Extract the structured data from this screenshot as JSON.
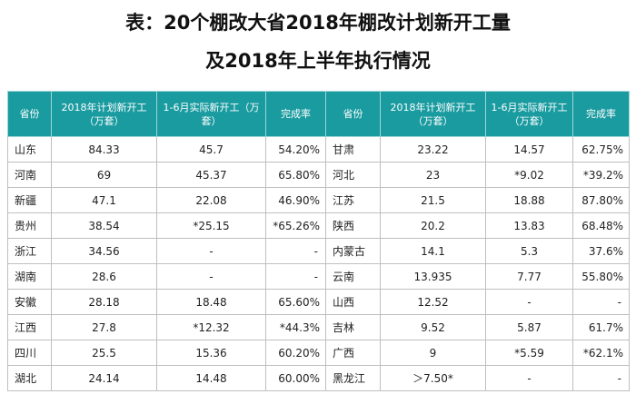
{
  "title": {
    "line1": "表：20个棚改大省2018年棚改计划新开工量",
    "line2": "及2018年上半年执行情况"
  },
  "headers": {
    "province": "省份",
    "planned": "2018年计划新开工（万套）",
    "actual": "1-6月实际新开工（万套）",
    "rate": "完成率"
  },
  "rows": [
    [
      {
        "province": "山东",
        "planned": "84.33",
        "actual": "45.7",
        "rate": "54.20%"
      },
      {
        "province": "甘肃",
        "planned": "23.22",
        "actual": "14.57",
        "rate": "62.75%"
      }
    ],
    [
      {
        "province": "河南",
        "planned": "69",
        "actual": "45.37",
        "rate": "65.80%"
      },
      {
        "province": "河北",
        "planned": "23",
        "actual": "*9.02",
        "rate": "*39.2%"
      }
    ],
    [
      {
        "province": "新疆",
        "planned": "47.1",
        "actual": "22.08",
        "rate": "46.90%"
      },
      {
        "province": "江苏",
        "planned": "21.5",
        "actual": "18.88",
        "rate": "87.80%"
      }
    ],
    [
      {
        "province": "贵州",
        "planned": "38.54",
        "actual": "*25.15",
        "rate": "*65.26%"
      },
      {
        "province": "陕西",
        "planned": "20.2",
        "actual": "13.83",
        "rate": "68.48%"
      }
    ],
    [
      {
        "province": "浙江",
        "planned": "34.56",
        "actual": "-",
        "rate": "-"
      },
      {
        "province": "内蒙古",
        "planned": "14.1",
        "actual": "5.3",
        "rate": "37.6%"
      }
    ],
    [
      {
        "province": "湖南",
        "planned": "28.6",
        "actual": "-",
        "rate": "-"
      },
      {
        "province": "云南",
        "planned": "13.935",
        "actual": "7.77",
        "rate": "55.80%"
      }
    ],
    [
      {
        "province": "安徽",
        "planned": "28.18",
        "actual": "18.48",
        "rate": "65.60%"
      },
      {
        "province": "山西",
        "planned": "12.52",
        "actual": "-",
        "rate": "-"
      }
    ],
    [
      {
        "province": "江西",
        "planned": "27.8",
        "actual": "*12.32",
        "rate": "*44.3%"
      },
      {
        "province": "吉林",
        "planned": "9.52",
        "actual": "5.87",
        "rate": "61.7%"
      }
    ],
    [
      {
        "province": "四川",
        "planned": "25.5",
        "actual": "15.36",
        "rate": "60.20%"
      },
      {
        "province": "广西",
        "planned": "9",
        "actual": "*5.59",
        "rate": "*62.1%"
      }
    ],
    [
      {
        "province": "湖北",
        "planned": "24.14",
        "actual": "14.48",
        "rate": "60.00%"
      },
      {
        "province": "黑龙江",
        "planned": "＞7.50*",
        "actual": "-",
        "rate": "-"
      }
    ]
  ]
}
